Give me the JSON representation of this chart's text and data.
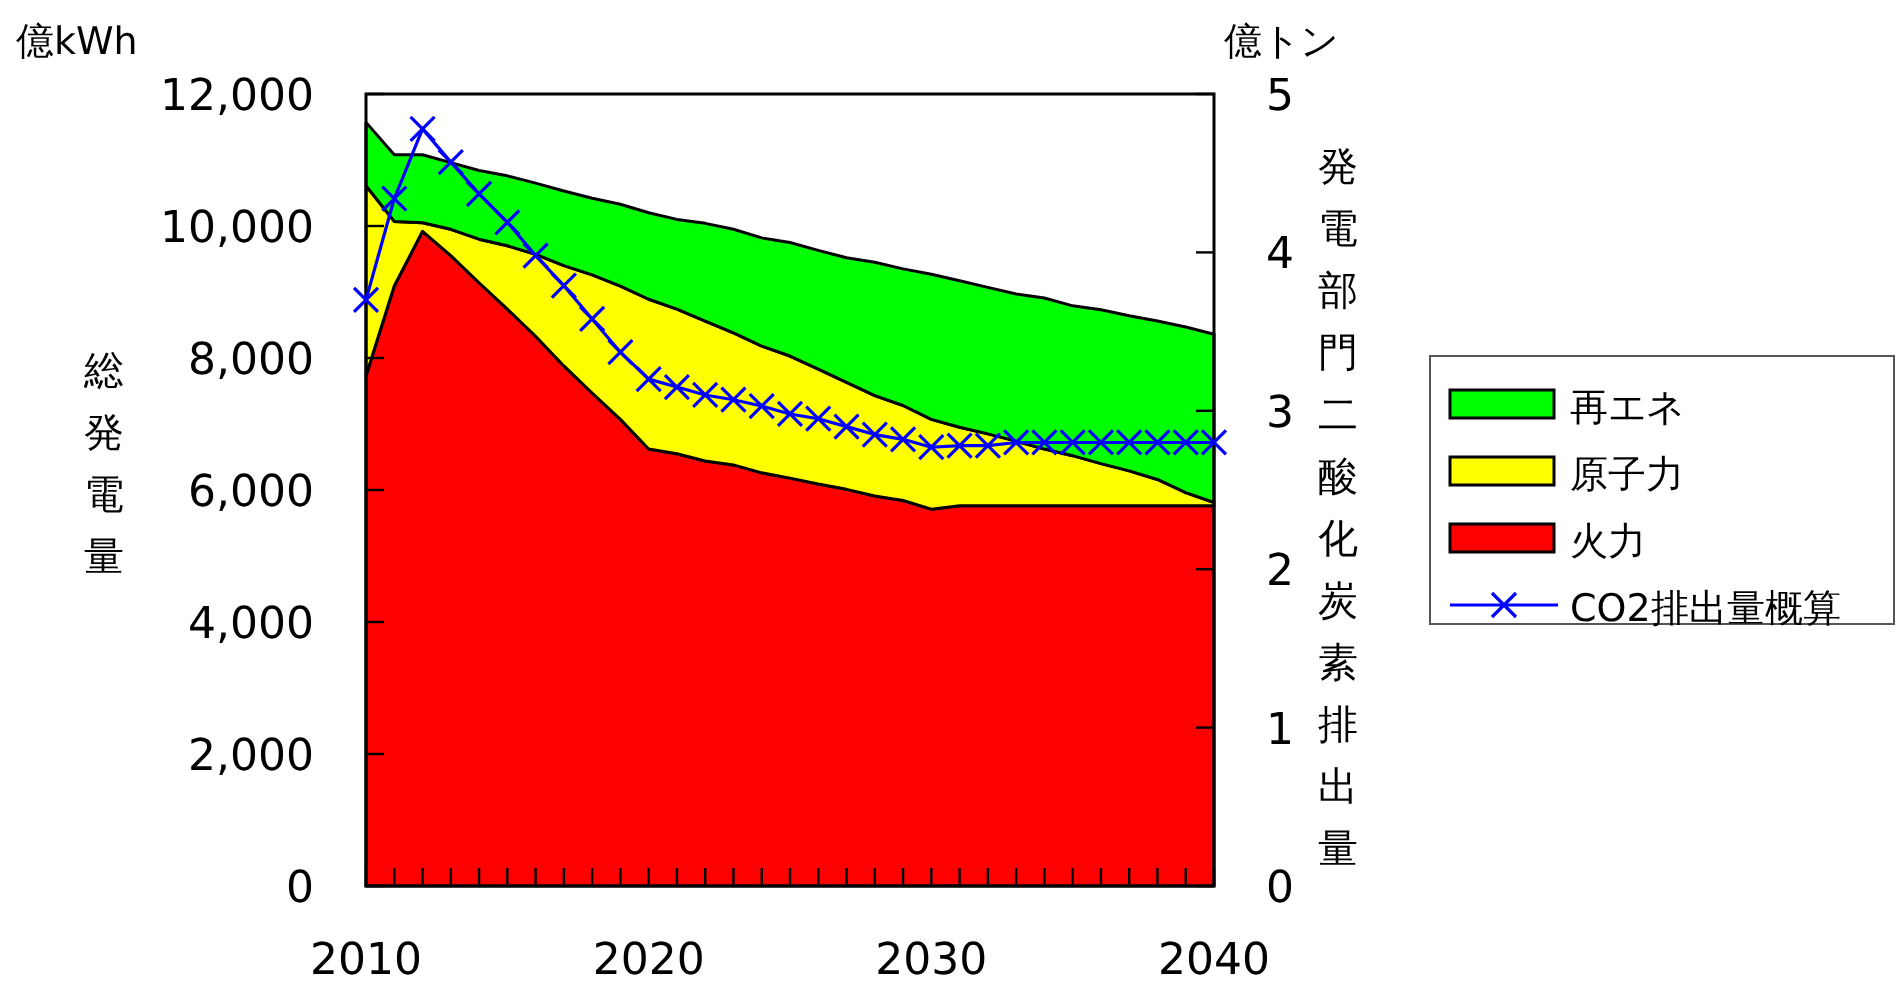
{
  "chart_data": {
    "type": "area",
    "stacked": true,
    "x": [
      2010,
      2011,
      2012,
      2013,
      2014,
      2015,
      2016,
      2017,
      2018,
      2019,
      2020,
      2021,
      2022,
      2023,
      2024,
      2025,
      2026,
      2027,
      2028,
      2029,
      2030,
      2031,
      2032,
      2033,
      2034,
      2035,
      2036,
      2037,
      2038,
      2039,
      2040
    ],
    "series": [
      {
        "name": "火力",
        "color": "#ff0000",
        "values": [
          7730,
          9090,
          9920,
          9550,
          9140,
          8740,
          8330,
          7880,
          7470,
          7070,
          6620,
          6550,
          6440,
          6380,
          6260,
          6180,
          6090,
          6010,
          5910,
          5840,
          5710,
          5760,
          5760,
          5760,
          5760,
          5760,
          5760,
          5760,
          5760,
          5760,
          5760
        ]
      },
      {
        "name": "原子力",
        "color": "#ffff00",
        "values": [
          2880,
          980,
          130,
          400,
          660,
          960,
          1240,
          1520,
          1790,
          2020,
          2270,
          2190,
          2120,
          2000,
          1920,
          1850,
          1740,
          1620,
          1520,
          1440,
          1360,
          1190,
          1090,
          980,
          860,
          760,
          640,
          530,
          400,
          200,
          50
        ]
      },
      {
        "name": "再エネ",
        "color": "#00ff00",
        "values": [
          960,
          1010,
          1030,
          1010,
          1040,
          1060,
          1080,
          1130,
          1160,
          1240,
          1310,
          1360,
          1480,
          1570,
          1640,
          1720,
          1800,
          1890,
          2020,
          2070,
          2200,
          2220,
          2220,
          2230,
          2290,
          2270,
          2330,
          2350,
          2400,
          2510,
          2550
        ]
      },
      {
        "name": "CO2排出量概算",
        "type": "line",
        "axis": "y2",
        "color": "#0000ff",
        "marker": "cross",
        "values": [
          3.7,
          4.34,
          4.78,
          4.57,
          4.37,
          4.19,
          3.98,
          3.79,
          3.58,
          3.37,
          3.2,
          3.15,
          3.1,
          3.07,
          3.03,
          2.98,
          2.95,
          2.9,
          2.85,
          2.82,
          2.77,
          2.78,
          2.78,
          2.8,
          2.8,
          2.8,
          2.8,
          2.8,
          2.8,
          2.8,
          2.8
        ]
      }
    ],
    "xlim": [
      2010,
      2040
    ],
    "xticks": [
      2010,
      {
        "value": 2011,
        "label": null
      },
      {
        "value": 2012,
        "label": null
      },
      {
        "value": 2013,
        "label": null
      },
      {
        "value": 2014,
        "label": null
      },
      {
        "value": 2015,
        "label": null
      },
      {
        "value": 2016,
        "label": null
      },
      {
        "value": 2017,
        "label": null
      },
      {
        "value": 2018,
        "label": null
      },
      {
        "value": 2019,
        "label": null
      },
      2020,
      {
        "value": 2021,
        "label": null
      },
      {
        "value": 2022,
        "label": null
      },
      {
        "value": 2023,
        "label": null
      },
      {
        "value": 2024,
        "label": null
      },
      {
        "value": 2025,
        "label": null
      },
      {
        "value": 2026,
        "label": null
      },
      {
        "value": 2027,
        "label": null
      },
      {
        "value": 2028,
        "label": null
      },
      {
        "value": 2029,
        "label": null
      },
      2030,
      {
        "value": 2031,
        "label": null
      },
      {
        "value": 2032,
        "label": null
      },
      {
        "value": 2033,
        "label": null
      },
      {
        "value": 2034,
        "label": null
      },
      {
        "value": 2035,
        "label": null
      },
      {
        "value": 2036,
        "label": null
      },
      {
        "value": 2037,
        "label": null
      },
      {
        "value": 2038,
        "label": null
      },
      {
        "value": 2039,
        "label": null
      },
      2040
    ],
    "ylim": [
      0,
      12000
    ],
    "yticks": [
      {
        "value": 0,
        "label": "0"
      },
      {
        "value": 2000,
        "label": "2,000"
      },
      {
        "value": 4000,
        "label": "4,000"
      },
      {
        "value": 6000,
        "label": "6,000"
      },
      {
        "value": 8000,
        "label": "8,000"
      },
      {
        "value": 10000,
        "label": "10,000"
      },
      {
        "value": 12000,
        "label": "12,000"
      }
    ],
    "y2lim": [
      0,
      5
    ],
    "y2ticks": [
      0,
      1,
      2,
      3,
      4,
      5
    ],
    "ylabel": "総発電量",
    "y2label": "発電部門二酸化炭素排出量",
    "annotations": [
      "億kWh",
      "億トン"
    ],
    "legend": "right",
    "grid": false
  }
}
